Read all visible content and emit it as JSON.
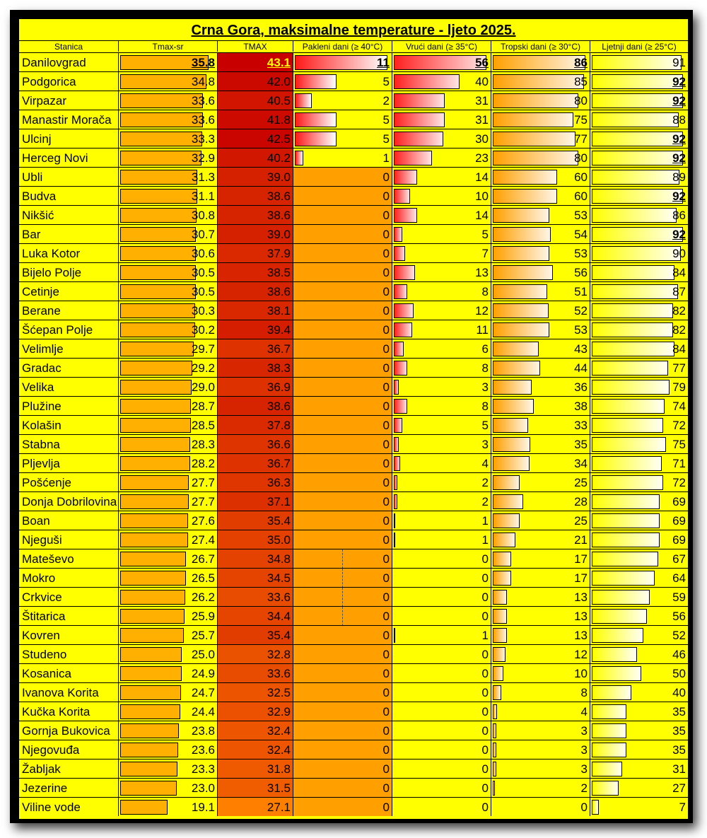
{
  "title": "Crna Gora, maksimalne temperature - ljeto 2025.",
  "colors": {
    "background": "#ffff00",
    "tmax_sr_bar": "#ffb000",
    "tmax_hot": "#c80000",
    "tmax_cool": "#ff8000",
    "pakleni_zero_cell": "#ffa000"
  },
  "headers": {
    "station": "Stanica",
    "tmax_sr": "Tmax-sr",
    "tmax": "TMAX",
    "pakleni": "Pakleni dani (≥ 40°C)",
    "vruci": "Vrući dani (≥ 35°C)",
    "tropski": "Tropski dani (≥ 30°C)",
    "ljetnji": "Ljetnji dani (≥ 25°C)"
  },
  "chart_data": {
    "type": "table",
    "title": "Crna Gora, maksimalne temperature - ljeto 2025.",
    "columns": [
      "Stanica",
      "Tmax-sr",
      "TMAX",
      "Pakleni dani (≥ 40°C)",
      "Vrući dani (≥ 35°C)",
      "Tropski dani (≥ 30°C)",
      "Ljetnji dani (≥ 25°C)"
    ],
    "rows": [
      [
        "Danilovgrad",
        "35.8",
        "43.1",
        "11",
        "56",
        "86",
        "91"
      ],
      [
        "Podgorica",
        "34.8",
        "42.0",
        "5",
        "40",
        "85",
        "92"
      ],
      [
        "Virpazar",
        "33.6",
        "40.5",
        "2",
        "31",
        "80",
        "92"
      ],
      [
        "Manastir Morača",
        "33.6",
        "41.8",
        "5",
        "31",
        "75",
        "88"
      ],
      [
        "Ulcinj",
        "33.3",
        "42.5",
        "5",
        "30",
        "77",
        "92"
      ],
      [
        "Herceg Novi",
        "32.9",
        "40.2",
        "1",
        "23",
        "80",
        "92"
      ],
      [
        "Ubli",
        "31.3",
        "39.0",
        "0",
        "14",
        "60",
        "89"
      ],
      [
        "Budva",
        "31.1",
        "38.6",
        "0",
        "10",
        "60",
        "92"
      ],
      [
        "Nikšić",
        "30.8",
        "38.6",
        "0",
        "14",
        "53",
        "86"
      ],
      [
        "Bar",
        "30.7",
        "39.0",
        "0",
        "5",
        "54",
        "92"
      ],
      [
        "Luka Kotor",
        "30.6",
        "37.9",
        "0",
        "7",
        "53",
        "90"
      ],
      [
        "Bijelo Polje",
        "30.5",
        "38.5",
        "0",
        "13",
        "56",
        "84"
      ],
      [
        "Cetinje",
        "30.5",
        "38.6",
        "0",
        "8",
        "51",
        "87"
      ],
      [
        "Berane",
        "30.3",
        "38.1",
        "0",
        "12",
        "52",
        "82"
      ],
      [
        "Šćepan Polje",
        "30.2",
        "39.4",
        "0",
        "11",
        "53",
        "82"
      ],
      [
        "Velimlje",
        "29.7",
        "36.7",
        "0",
        "6",
        "43",
        "84"
      ],
      [
        "Gradac",
        "29.2",
        "38.3",
        "0",
        "8",
        "44",
        "77"
      ],
      [
        "Velika",
        "29.0",
        "36.9",
        "0",
        "3",
        "36",
        "79"
      ],
      [
        "Plužine",
        "28.7",
        "38.6",
        "0",
        "8",
        "38",
        "74"
      ],
      [
        "Kolašin",
        "28.5",
        "37.8",
        "0",
        "5",
        "33",
        "72"
      ],
      [
        "Stabna",
        "28.3",
        "36.6",
        "0",
        "3",
        "35",
        "75"
      ],
      [
        "Pljevlja",
        "28.2",
        "36.7",
        "0",
        "4",
        "34",
        "71"
      ],
      [
        "Pošćenje",
        "27.7",
        "36.3",
        "0",
        "2",
        "25",
        "72"
      ],
      [
        "Donja Dobrilovina",
        "27.7",
        "37.1",
        "0",
        "2",
        "28",
        "69"
      ],
      [
        "Boan",
        "27.6",
        "35.4",
        "0",
        "1",
        "25",
        "69"
      ],
      [
        "Njeguši",
        "27.4",
        "35.0",
        "0",
        "1",
        "21",
        "69"
      ],
      [
        "Mateševo",
        "26.7",
        "34.8",
        "0",
        "0",
        "17",
        "67"
      ],
      [
        "Mokro",
        "26.5",
        "34.5",
        "0",
        "0",
        "17",
        "64"
      ],
      [
        "Crkvice",
        "26.2",
        "33.6",
        "0",
        "0",
        "13",
        "59"
      ],
      [
        "Štitarica",
        "25.9",
        "34.4",
        "0",
        "0",
        "13",
        "56"
      ],
      [
        "Kovren",
        "25.7",
        "35.4",
        "0",
        "1",
        "13",
        "52"
      ],
      [
        "Studeno",
        "25.0",
        "32.8",
        "0",
        "0",
        "12",
        "46"
      ],
      [
        "Kosanica",
        "24.9",
        "33.6",
        "0",
        "0",
        "10",
        "50"
      ],
      [
        "Ivanova Korita",
        "24.7",
        "32.5",
        "0",
        "0",
        "8",
        "40"
      ],
      [
        "Kučka Korita",
        "24.4",
        "32.9",
        "0",
        "0",
        "4",
        "35"
      ],
      [
        "Gornja Bukovica",
        "23.8",
        "32.4",
        "0",
        "0",
        "3",
        "35"
      ],
      [
        "Njegovuđa",
        "23.6",
        "32.4",
        "0",
        "0",
        "3",
        "35"
      ],
      [
        "Žabljak",
        "23.3",
        "31.8",
        "0",
        "0",
        "3",
        "31"
      ],
      [
        "Jezerine",
        "23.0",
        "31.5",
        "0",
        "0",
        "2",
        "27"
      ],
      [
        "Viline vode",
        "19.1",
        "27.1",
        "0",
        "0",
        "0",
        "7"
      ]
    ]
  }
}
